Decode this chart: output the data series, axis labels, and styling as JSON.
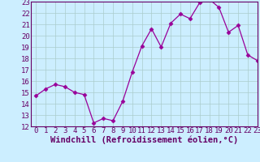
{
  "x": [
    0,
    1,
    2,
    3,
    4,
    5,
    6,
    7,
    8,
    9,
    10,
    11,
    12,
    13,
    14,
    15,
    16,
    17,
    18,
    19,
    20,
    21,
    22,
    23
  ],
  "y": [
    14.7,
    15.3,
    15.7,
    15.5,
    15.0,
    14.8,
    12.3,
    12.7,
    12.5,
    14.2,
    16.8,
    19.1,
    20.6,
    19.0,
    21.1,
    21.9,
    21.5,
    22.9,
    23.2,
    22.5,
    20.3,
    20.9,
    18.3,
    17.8
  ],
  "line_color": "#990099",
  "marker": "D",
  "marker_size": 2.5,
  "bg_color": "#cceeff",
  "grid_color": "#aacccc",
  "xlabel": "Windchill (Refroidissement éolien,°C)",
  "xlabel_fontsize": 7.5,
  "ylim": [
    12,
    23
  ],
  "xlim": [
    -0.5,
    23
  ],
  "yticks": [
    12,
    13,
    14,
    15,
    16,
    17,
    18,
    19,
    20,
    21,
    22,
    23
  ],
  "xticks": [
    0,
    1,
    2,
    3,
    4,
    5,
    6,
    7,
    8,
    9,
    10,
    11,
    12,
    13,
    14,
    15,
    16,
    17,
    18,
    19,
    20,
    21,
    22,
    23
  ],
  "tick_fontsize": 6.5,
  "tick_color": "#660066",
  "spine_color": "#660066",
  "xlabel_color": "#660066"
}
